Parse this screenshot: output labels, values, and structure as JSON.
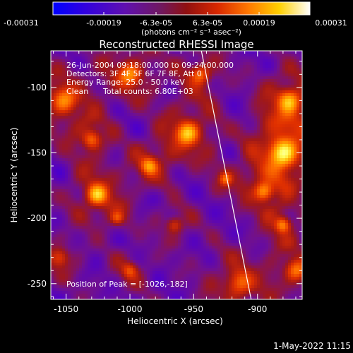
{
  "colorbar": {
    "ticks": [
      "-0.00031",
      "-0.00019",
      "-6.3e-05",
      "6.3e-05",
      "0.00019",
      "0.00031"
    ],
    "unit_label": "(photons cm⁻² s⁻¹ asec⁻²)",
    "range": [
      -0.00031,
      0.00031
    ]
  },
  "chart_data": {
    "type": "heatmap",
    "title": "Reconstructed RHESSI Image",
    "xlabel": "Heliocentric X (arcsec)",
    "ylabel": "Heliocentric Y (arcsec)",
    "xlim": [
      -1062,
      -865
    ],
    "ylim": [
      -262,
      -72
    ],
    "xticks": [
      -1050,
      -1000,
      -950,
      -900
    ],
    "yticks": [
      -100,
      -150,
      -200,
      -250
    ],
    "limb_line": {
      "x": [
        -944,
        -905
      ],
      "y": [
        -72,
        -262
      ]
    },
    "peak": {
      "x": -1026,
      "y": -182
    },
    "colormap": [
      "#0000ff",
      "#5000c8",
      "#701090",
      "#a01818",
      "#e03000",
      "#ff7000",
      "#ffb800",
      "#ffff60",
      "#ffffff"
    ]
  },
  "annotations": {
    "time_range": "26-Jun-2004 09:18:00.000 to 09:24:00.000",
    "detectors": "Detectors: 3F 4F 5F 6F 7F 8F, Att 0",
    "energy_range": "Energy Range: 25.0 - 50.0 keV",
    "method": "Clean",
    "total_counts": "Total counts: 6.80E+03",
    "peak_position": "Position of Peak = [-1026,-182]"
  },
  "footer": {
    "timestamp": "1-May-2022 11:15"
  }
}
